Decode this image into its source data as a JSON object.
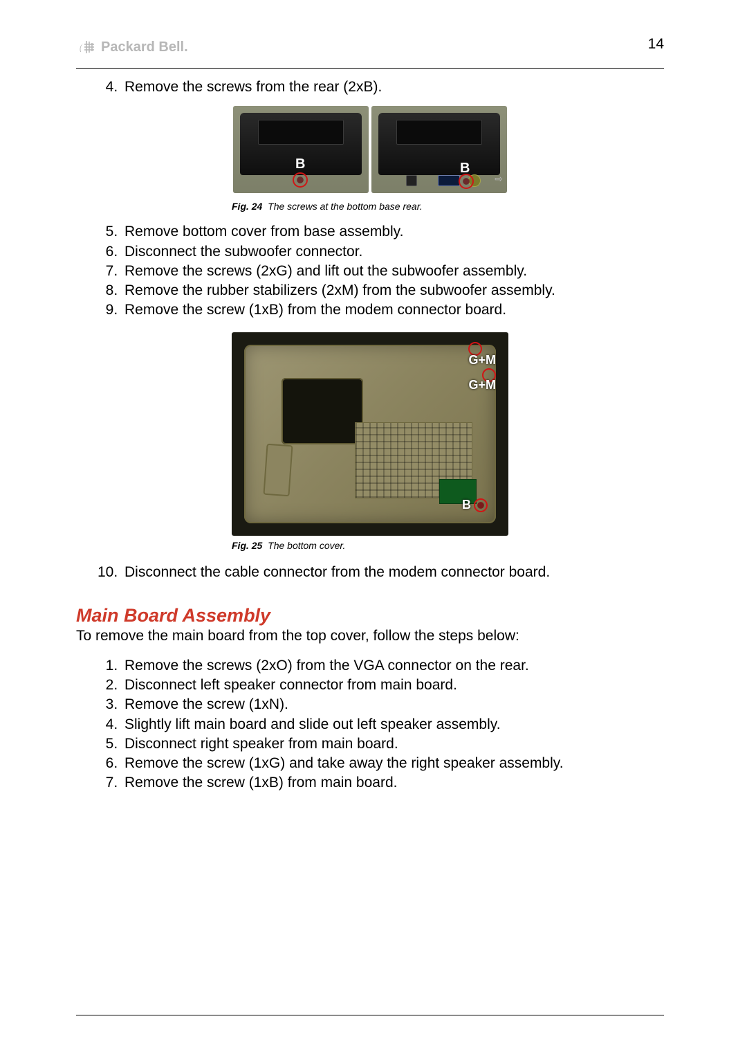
{
  "page": {
    "number": "14",
    "brand": "Packard Bell"
  },
  "stepsA": {
    "start": 4,
    "items": [
      "Remove the screws from the rear (2xB)."
    ]
  },
  "fig24": {
    "label": "Fig. 24",
    "caption": "The screws at the bottom base rear.",
    "marker": "B"
  },
  "stepsB": {
    "start": 5,
    "items": [
      "Remove bottom cover from base assembly.",
      "Disconnect the subwoofer connector.",
      "Remove the screws (2xG) and lift out the subwoofer assembly.",
      "Remove the rubber stabilizers (2xM) from the subwoofer assembly.",
      "Remove the screw (1xB) from the modem connector board."
    ]
  },
  "fig25": {
    "label": "Fig. 25",
    "caption": "The bottom cover.",
    "markers": {
      "gm": "G+M",
      "b": "B"
    }
  },
  "stepsC": {
    "start": 10,
    "items": [
      "Disconnect the cable connector from the modem connector board."
    ]
  },
  "section": {
    "heading": "Main Board Assembly",
    "intro": "To remove the main board from the top cover, follow the steps below:"
  },
  "stepsD": {
    "start": 1,
    "items": [
      "Remove the screws (2xO) from the VGA connector on the rear.",
      "Disconnect left speaker connector from main board.",
      "Remove the screw (1xN).",
      "Slightly lift main board and slide out left speaker assembly.",
      "Disconnect right speaker from main board.",
      "Remove the screw (1xG) and take away the right speaker assembly.",
      "Remove the screw (1xB) from main board."
    ]
  }
}
